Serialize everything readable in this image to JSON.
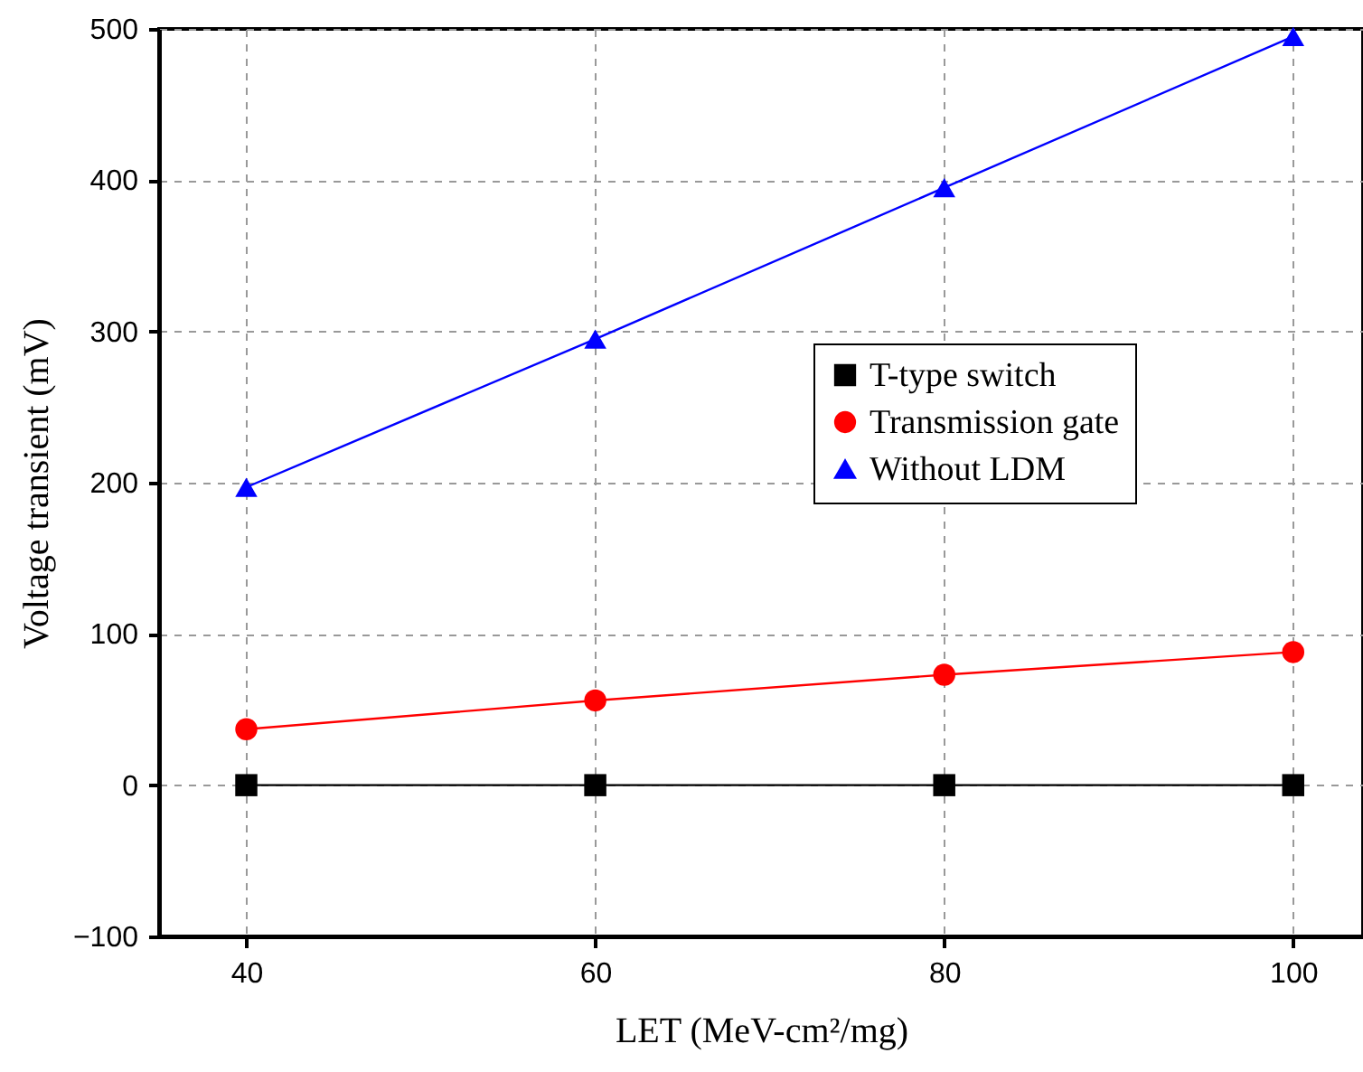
{
  "chart_data": {
    "type": "line",
    "xlabel": "LET (MeV-cm²/mg)",
    "ylabel": "Voltage transient (mV)",
    "x": [
      40,
      60,
      80,
      100
    ],
    "series": [
      {
        "name": "T-type switch",
        "color": "#000000",
        "marker": "square",
        "values": [
          0,
          0,
          0,
          0
        ]
      },
      {
        "name": "Transmission gate",
        "color": "#ff0000",
        "marker": "circle",
        "values": [
          37,
          56,
          73,
          88
        ]
      },
      {
        "name": "Without LDM",
        "color": "#0000ff",
        "marker": "triangle",
        "values": [
          197,
          295,
          395,
          495
        ]
      }
    ],
    "xlim": [
      35,
      104
    ],
    "xticks": [
      40,
      60,
      80,
      100
    ],
    "ylim": [
      -100,
      500
    ],
    "yticks": [
      -100,
      0,
      100,
      200,
      300,
      400,
      500
    ],
    "grid": true,
    "legend": "right",
    "line_style": "solid"
  }
}
